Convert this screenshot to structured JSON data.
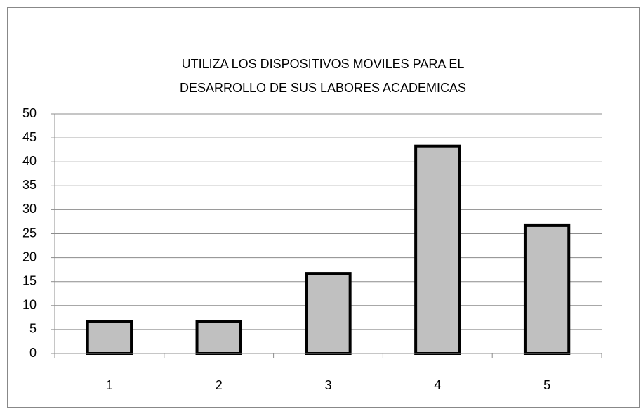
{
  "chart_data": {
    "type": "bar",
    "title": [
      "UTILIZA LOS DISPOSITIVOS MOVILES PARA EL",
      "DESARROLLO DE SUS LABORES ACADEMICAS"
    ],
    "categories": [
      "1",
      "2",
      "3",
      "4",
      "5"
    ],
    "values": [
      6.7,
      6.7,
      16.7,
      43.3,
      26.7
    ],
    "color": "#c0c0c0",
    "ylim": [
      0,
      50
    ],
    "yticks": [
      0,
      5,
      10,
      15,
      20,
      25,
      30,
      35,
      40,
      45,
      50
    ],
    "grid": true
  }
}
